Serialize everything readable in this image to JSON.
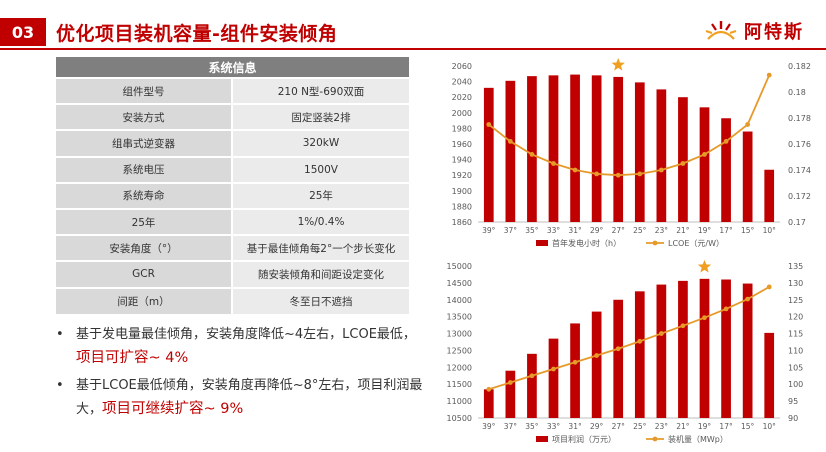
{
  "slide": {
    "number": "03",
    "title": "优化项目装机容量-组件安装倾角"
  },
  "logo": {
    "text": "阿特斯"
  },
  "spec_table": {
    "header": "系统信息",
    "rows": [
      {
        "key": "组件型号",
        "value": "210 N型-690双面"
      },
      {
        "key": "安装方式",
        "value": "固定竖装2排"
      },
      {
        "key": "组串式逆变器",
        "value": "320kW"
      },
      {
        "key": "系统电压",
        "value": "1500V"
      },
      {
        "key": "系统寿命",
        "value": "25年"
      },
      {
        "key": "25年",
        "value": "1%/0.4%"
      },
      {
        "key": "安装角度（°）",
        "value": "基于最佳倾角每2°一个步长变化"
      },
      {
        "key": "GCR",
        "value": "随安装倾角和间距设定变化"
      },
      {
        "key": "间距（m）",
        "value": "冬至日不遮挡"
      }
    ]
  },
  "bullets": [
    {
      "text": "基于发电量最佳倾角，安装角度降低~4左右，LCOE最低，",
      "highlight": "项目可扩容~ 4%"
    },
    {
      "text": "基于LCOE最低倾角，安装角度再降低~8°左右，项目利润最大，",
      "highlight": "项目可继续扩容~ 9%"
    }
  ],
  "chart_data": [
    {
      "type": "bar",
      "categories": [
        "39°",
        "37°",
        "35°",
        "33°",
        "31°",
        "29°",
        "27°",
        "25°",
        "23°",
        "21°",
        "19°",
        "17°",
        "15°",
        "10°"
      ],
      "series": [
        {
          "name": "首年发电小时（h）",
          "type": "bar",
          "axis": "left",
          "values": [
            2032,
            2041,
            2047,
            2048,
            2049,
            2048,
            2046,
            2039,
            2030,
            2020,
            2007,
            1993,
            1976,
            1927
          ]
        },
        {
          "name": "LCOE（元/W）",
          "type": "line",
          "axis": "right",
          "values": [
            0.1775,
            0.1762,
            0.1752,
            0.1745,
            0.174,
            0.1737,
            0.1736,
            0.1737,
            0.174,
            0.1745,
            0.1752,
            0.1762,
            0.1775,
            0.1813
          ]
        }
      ],
      "y_left": {
        "min": 1860,
        "max": 2060,
        "ticks": [
          "1860",
          "1880",
          "1900",
          "1920",
          "1940",
          "1960",
          "1980",
          "2000",
          "2020",
          "2040",
          "2060"
        ]
      },
      "y_right": {
        "min": 0.17,
        "max": 0.182,
        "ticks": [
          "0.17",
          "0.172",
          "0.174",
          "0.176",
          "0.178",
          "0.18",
          "0.182"
        ]
      },
      "star_category": "27°",
      "colors": {
        "bar": "#c00000",
        "line": "#e69a2a"
      },
      "legend_position": "bottom"
    },
    {
      "type": "bar",
      "categories": [
        "39°",
        "37°",
        "35°",
        "33°",
        "31°",
        "29°",
        "27°",
        "25°",
        "23°",
        "21°",
        "19°",
        "17°",
        "15°",
        "10°"
      ],
      "series": [
        {
          "name": "项目利润（万元）",
          "type": "bar",
          "axis": "left",
          "values": [
            11350,
            11900,
            12400,
            12850,
            13300,
            13650,
            14000,
            14250,
            14450,
            14560,
            14620,
            14600,
            14480,
            13020
          ]
        },
        {
          "name": "装机量（MWp）",
          "type": "line",
          "axis": "right",
          "values": [
            98.5,
            100.5,
            102.5,
            104.5,
            106.5,
            108.5,
            110.5,
            112.7,
            115,
            117.3,
            119.7,
            122.3,
            125.2,
            128.8
          ]
        }
      ],
      "y_left": {
        "min": 10500,
        "max": 15000,
        "ticks": [
          "10500",
          "11000",
          "11500",
          "12000",
          "12500",
          "13000",
          "13500",
          "14000",
          "14500",
          "15000"
        ]
      },
      "y_right": {
        "min": 90,
        "max": 135,
        "ticks": [
          "90",
          "95",
          "100",
          "105",
          "110",
          "115",
          "120",
          "125",
          "130",
          "135"
        ]
      },
      "star_category": "19°",
      "colors": {
        "bar": "#c00000",
        "line": "#e69a2a"
      },
      "legend_position": "bottom"
    }
  ]
}
